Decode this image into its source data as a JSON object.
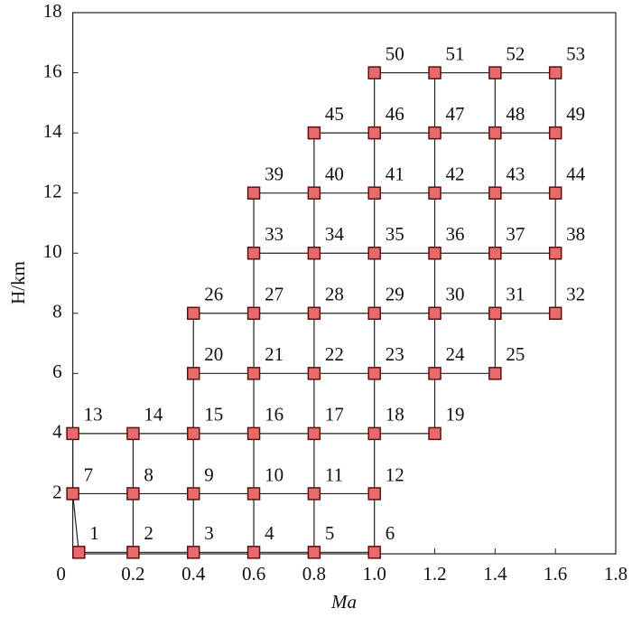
{
  "chart_data": {
    "type": "scatter",
    "x_label": "Ma",
    "y_label": "H/km",
    "labels": [
      1,
      2,
      3,
      4,
      5,
      6,
      7,
      8,
      9,
      10,
      11,
      12,
      13,
      14,
      15,
      16,
      17,
      18,
      19,
      20,
      21,
      22,
      23,
      24,
      25,
      26,
      27,
      28,
      29,
      30,
      31,
      32,
      33,
      34,
      35,
      36,
      37,
      38,
      39,
      40,
      41,
      42,
      43,
      44,
      45,
      46,
      47,
      48,
      49,
      50,
      51,
      52,
      53
    ],
    "x": [
      0.02,
      0.2,
      0.4,
      0.6,
      0.8,
      1.0,
      0,
      0.2,
      0.4,
      0.6,
      0.8,
      1.0,
      0,
      0.2,
      0.4,
      0.6,
      0.8,
      1.0,
      1.2,
      0.4,
      0.6,
      0.8,
      1.0,
      1.2,
      1.4,
      0.4,
      0.6,
      0.8,
      1.0,
      1.2,
      1.4,
      1.6,
      0.6,
      0.8,
      1.0,
      1.2,
      1.4,
      1.6,
      0.6,
      0.8,
      1.0,
      1.2,
      1.4,
      1.6,
      0.8,
      1.0,
      1.2,
      1.4,
      1.6,
      1.0,
      1.2,
      1.4,
      1.6
    ],
    "values": [
      0.05,
      0.05,
      0.05,
      0.05,
      0.05,
      0.05,
      2,
      2,
      2,
      2,
      2,
      2,
      4,
      4,
      4,
      4,
      4,
      4,
      4,
      6,
      6,
      6,
      6,
      6,
      6,
      8,
      8,
      8,
      8,
      8,
      8,
      8,
      10,
      10,
      10,
      10,
      10,
      10,
      12,
      12,
      12,
      12,
      12,
      12,
      14,
      14,
      14,
      14,
      14,
      16,
      16,
      16,
      16
    ],
    "color": "#e86a6a",
    "xlim": [
      0,
      1.8
    ],
    "xticks": [
      0,
      0.2,
      0.4,
      0.6,
      0.8,
      {
        "value": 1,
        "label": "1.0"
      },
      1.2,
      1.4,
      1.6,
      1.8
    ],
    "ylim": [
      0,
      18
    ],
    "yticks": [
      2,
      4,
      6,
      8,
      10,
      12,
      14,
      16,
      18
    ]
  }
}
